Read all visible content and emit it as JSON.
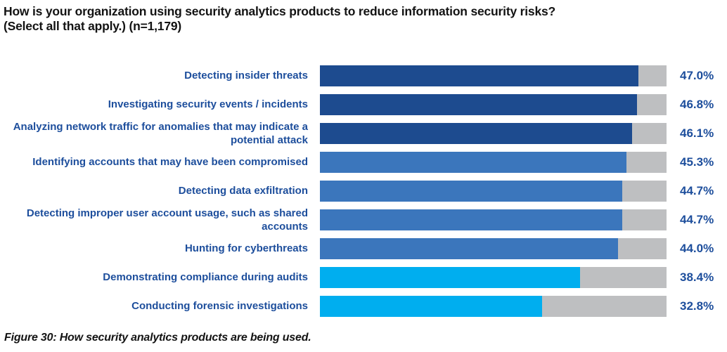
{
  "header": {
    "title": "How is your organization using security analytics products to reduce information security risks?",
    "subtitle": "(Select all that apply.) (n=1,179)"
  },
  "chart_data": {
    "type": "bar",
    "orientation": "horizontal",
    "title": "How is your organization using security analytics products to reduce information security risks? (Select all that apply.) (n=1,179)",
    "categories": [
      "Detecting insider threats",
      "Investigating security events / incidents",
      "Analyzing network traffic for anomalies that may indicate a potential attack",
      "Identifying accounts that may have been compromised",
      "Detecting data exfiltration",
      "Detecting improper user account usage, such as shared accounts",
      "Hunting for cyberthreats",
      "Demonstrating compliance during audits",
      "Conducting forensic investigations"
    ],
    "values": [
      47.0,
      46.8,
      46.1,
      45.3,
      44.7,
      44.7,
      44.0,
      38.4,
      32.8
    ],
    "display_values": [
      "47.0%",
      "46.8%",
      "46.1%",
      "45.3%",
      "44.7%",
      "44.7%",
      "44.0%",
      "38.4%",
      "32.8%"
    ],
    "bar_color_keys": [
      "dark_navy",
      "dark_navy",
      "dark_navy",
      "medium_blue",
      "medium_blue",
      "medium_blue",
      "medium_blue",
      "cyan",
      "cyan"
    ],
    "xlim": [
      0,
      51.2
    ],
    "xlabel": "",
    "ylabel": "",
    "grid": false,
    "legend": false,
    "value_label_position": "right-of-track"
  },
  "colors": {
    "dark_navy": "#1d4b8f",
    "medium_blue": "#3b76bc",
    "cyan": "#00aeef",
    "track_gray": "#bebfc1",
    "text_blue": "#1d4e9c",
    "text_black": "#131313"
  },
  "footer": {
    "caption": "Figure 30: How security analytics products are being used."
  }
}
